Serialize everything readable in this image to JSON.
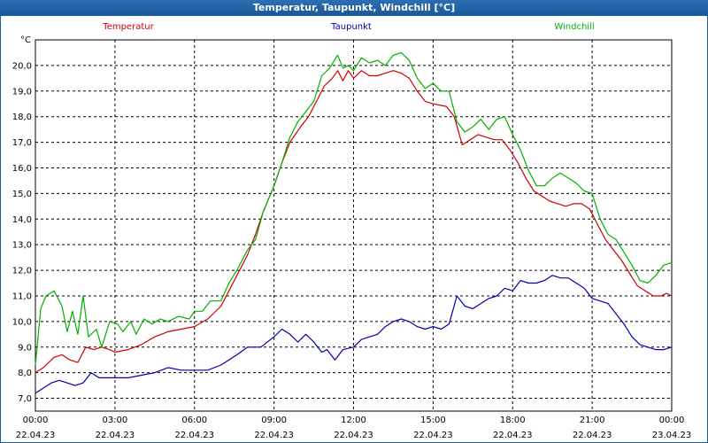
{
  "window": {
    "title": "Temperatur, Taupunkt, Windchill [°C]"
  },
  "chart_data": {
    "type": "line",
    "title": "Temperatur, Taupunkt, Windchill [°C]",
    "unit": "°C",
    "ylim": [
      6.5,
      21.0
    ],
    "yticks": [
      "7,0",
      "8,0",
      "9,0",
      "10,0",
      "11,0",
      "12,0",
      "13,0",
      "14,0",
      "15,0",
      "16,0",
      "17,0",
      "18,0",
      "19,0",
      "20,0"
    ],
    "xlim": [
      0,
      24
    ],
    "xticks": [
      {
        "time": "00:00",
        "date": "22.04.23"
      },
      {
        "time": "03:00",
        "date": "22.04.23"
      },
      {
        "time": "06:00",
        "date": "22.04.23"
      },
      {
        "time": "09:00",
        "date": "22.04.23"
      },
      {
        "time": "12:00",
        "date": "22.04.23"
      },
      {
        "time": "15:00",
        "date": "22.04.23"
      },
      {
        "time": "18:00",
        "date": "22.04.23"
      },
      {
        "time": "21:00",
        "date": "22.04.23"
      },
      {
        "time": "00:00",
        "date": "23.04.23"
      }
    ],
    "grid": true,
    "series": [
      {
        "name": "Temperatur",
        "color": "#d00000",
        "points": [
          [
            0,
            8.0
          ],
          [
            0.3,
            8.2
          ],
          [
            0.7,
            8.6
          ],
          [
            1.0,
            8.7
          ],
          [
            1.3,
            8.5
          ],
          [
            1.6,
            8.4
          ],
          [
            1.9,
            9.0
          ],
          [
            2.2,
            8.9
          ],
          [
            2.5,
            9.0
          ],
          [
            2.8,
            8.9
          ],
          [
            3.0,
            8.8
          ],
          [
            3.5,
            8.9
          ],
          [
            4.0,
            9.1
          ],
          [
            4.5,
            9.4
          ],
          [
            5.0,
            9.6
          ],
          [
            5.5,
            9.7
          ],
          [
            6.0,
            9.8
          ],
          [
            6.5,
            10.1
          ],
          [
            7.0,
            10.6
          ],
          [
            7.3,
            11.2
          ],
          [
            7.6,
            11.8
          ],
          [
            8.0,
            12.6
          ],
          [
            8.3,
            13.4
          ],
          [
            8.6,
            14.3
          ],
          [
            9.0,
            15.3
          ],
          [
            9.3,
            16.2
          ],
          [
            9.6,
            17.0
          ],
          [
            10.0,
            17.6
          ],
          [
            10.3,
            18.0
          ],
          [
            10.6,
            18.6
          ],
          [
            10.9,
            19.2
          ],
          [
            11.2,
            19.5
          ],
          [
            11.4,
            19.8
          ],
          [
            11.6,
            19.4
          ],
          [
            11.8,
            19.8
          ],
          [
            12.0,
            19.5
          ],
          [
            12.3,
            19.8
          ],
          [
            12.6,
            19.6
          ],
          [
            12.9,
            19.6
          ],
          [
            13.2,
            19.7
          ],
          [
            13.5,
            19.8
          ],
          [
            13.8,
            19.7
          ],
          [
            14.1,
            19.5
          ],
          [
            14.4,
            19.0
          ],
          [
            14.7,
            18.6
          ],
          [
            15.0,
            18.5
          ],
          [
            15.5,
            18.4
          ],
          [
            15.8,
            18.0
          ],
          [
            16.1,
            16.9
          ],
          [
            16.4,
            17.1
          ],
          [
            16.7,
            17.3
          ],
          [
            17.0,
            17.2
          ],
          [
            17.3,
            17.1
          ],
          [
            17.6,
            17.1
          ],
          [
            17.9,
            16.7
          ],
          [
            18.2,
            16.2
          ],
          [
            18.5,
            15.6
          ],
          [
            18.8,
            15.1
          ],
          [
            19.1,
            14.9
          ],
          [
            19.4,
            14.7
          ],
          [
            19.7,
            14.6
          ],
          [
            20.0,
            14.5
          ],
          [
            20.3,
            14.6
          ],
          [
            20.6,
            14.6
          ],
          [
            20.9,
            14.4
          ],
          [
            21.2,
            13.8
          ],
          [
            21.5,
            13.2
          ],
          [
            21.8,
            12.8
          ],
          [
            22.1,
            12.4
          ],
          [
            22.4,
            11.9
          ],
          [
            22.7,
            11.4
          ],
          [
            23.0,
            11.2
          ],
          [
            23.3,
            11.0
          ],
          [
            23.6,
            11.0
          ],
          [
            23.8,
            11.1
          ],
          [
            24.0,
            11.0
          ]
        ]
      },
      {
        "name": "Taupunkt",
        "color": "#0000b0",
        "points": [
          [
            0,
            7.2
          ],
          [
            0.3,
            7.4
          ],
          [
            0.6,
            7.6
          ],
          [
            0.9,
            7.7
          ],
          [
            1.2,
            7.6
          ],
          [
            1.5,
            7.5
          ],
          [
            1.8,
            7.6
          ],
          [
            2.1,
            8.0
          ],
          [
            2.4,
            7.8
          ],
          [
            2.7,
            7.8
          ],
          [
            3.0,
            7.8
          ],
          [
            3.5,
            7.8
          ],
          [
            4.0,
            7.9
          ],
          [
            4.5,
            8.0
          ],
          [
            5.0,
            8.2
          ],
          [
            5.5,
            8.1
          ],
          [
            6.0,
            8.1
          ],
          [
            6.5,
            8.1
          ],
          [
            7.0,
            8.3
          ],
          [
            7.3,
            8.5
          ],
          [
            7.6,
            8.7
          ],
          [
            8.0,
            9.0
          ],
          [
            8.5,
            9.0
          ],
          [
            9.0,
            9.4
          ],
          [
            9.3,
            9.7
          ],
          [
            9.6,
            9.5
          ],
          [
            9.9,
            9.2
          ],
          [
            10.2,
            9.5
          ],
          [
            10.5,
            9.2
          ],
          [
            10.8,
            8.8
          ],
          [
            11.0,
            8.9
          ],
          [
            11.3,
            8.5
          ],
          [
            11.6,
            8.9
          ],
          [
            12.0,
            9.0
          ],
          [
            12.3,
            9.3
          ],
          [
            12.6,
            9.4
          ],
          [
            12.9,
            9.5
          ],
          [
            13.2,
            9.8
          ],
          [
            13.5,
            10.0
          ],
          [
            13.8,
            10.1
          ],
          [
            14.1,
            10.0
          ],
          [
            14.4,
            9.8
          ],
          [
            14.7,
            9.7
          ],
          [
            15.0,
            9.8
          ],
          [
            15.3,
            9.7
          ],
          [
            15.6,
            9.9
          ],
          [
            15.9,
            11.0
          ],
          [
            16.2,
            10.6
          ],
          [
            16.5,
            10.5
          ],
          [
            16.8,
            10.7
          ],
          [
            17.1,
            10.9
          ],
          [
            17.4,
            11.0
          ],
          [
            17.7,
            11.3
          ],
          [
            18.0,
            11.2
          ],
          [
            18.3,
            11.6
          ],
          [
            18.6,
            11.5
          ],
          [
            18.9,
            11.5
          ],
          [
            19.2,
            11.6
          ],
          [
            19.5,
            11.8
          ],
          [
            19.8,
            11.7
          ],
          [
            20.1,
            11.7
          ],
          [
            20.4,
            11.5
          ],
          [
            20.7,
            11.3
          ],
          [
            21.0,
            10.9
          ],
          [
            21.3,
            10.8
          ],
          [
            21.6,
            10.7
          ],
          [
            21.9,
            10.3
          ],
          [
            22.2,
            9.9
          ],
          [
            22.5,
            9.4
          ],
          [
            22.8,
            9.1
          ],
          [
            23.1,
            9.0
          ],
          [
            23.4,
            8.9
          ],
          [
            23.7,
            8.9
          ],
          [
            24.0,
            9.0
          ]
        ]
      },
      {
        "name": "Windchill",
        "color": "#00b000",
        "points": [
          [
            0,
            8.3
          ],
          [
            0.2,
            10.5
          ],
          [
            0.4,
            11.0
          ],
          [
            0.7,
            11.2
          ],
          [
            1.0,
            10.6
          ],
          [
            1.2,
            9.6
          ],
          [
            1.4,
            10.4
          ],
          [
            1.6,
            9.5
          ],
          [
            1.8,
            11.0
          ],
          [
            2.0,
            9.4
          ],
          [
            2.3,
            9.7
          ],
          [
            2.5,
            9.0
          ],
          [
            2.8,
            10.0
          ],
          [
            3.1,
            9.9
          ],
          [
            3.3,
            9.6
          ],
          [
            3.6,
            10.0
          ],
          [
            3.8,
            9.5
          ],
          [
            4.1,
            10.1
          ],
          [
            4.4,
            9.9
          ],
          [
            4.7,
            10.1
          ],
          [
            5.0,
            10.0
          ],
          [
            5.4,
            10.2
          ],
          [
            5.8,
            10.1
          ],
          [
            6.0,
            10.4
          ],
          [
            6.3,
            10.4
          ],
          [
            6.6,
            10.8
          ],
          [
            7.0,
            10.8
          ],
          [
            7.3,
            11.5
          ],
          [
            7.6,
            12.0
          ],
          [
            8.0,
            12.8
          ],
          [
            8.3,
            13.2
          ],
          [
            8.6,
            14.3
          ],
          [
            9.0,
            15.3
          ],
          [
            9.3,
            16.2
          ],
          [
            9.6,
            17.2
          ],
          [
            9.9,
            17.8
          ],
          [
            10.2,
            18.2
          ],
          [
            10.5,
            18.6
          ],
          [
            10.8,
            19.6
          ],
          [
            11.1,
            19.9
          ],
          [
            11.4,
            20.4
          ],
          [
            11.6,
            19.9
          ],
          [
            11.8,
            20.0
          ],
          [
            12.0,
            19.8
          ],
          [
            12.3,
            20.3
          ],
          [
            12.6,
            20.1
          ],
          [
            12.9,
            20.2
          ],
          [
            13.2,
            20.0
          ],
          [
            13.5,
            20.4
          ],
          [
            13.8,
            20.5
          ],
          [
            14.1,
            20.2
          ],
          [
            14.4,
            19.5
          ],
          [
            14.7,
            19.1
          ],
          [
            15.0,
            19.3
          ],
          [
            15.3,
            19.0
          ],
          [
            15.6,
            19.0
          ],
          [
            15.9,
            17.8
          ],
          [
            16.2,
            17.4
          ],
          [
            16.5,
            17.6
          ],
          [
            16.8,
            17.9
          ],
          [
            17.1,
            17.5
          ],
          [
            17.4,
            17.9
          ],
          [
            17.7,
            18.0
          ],
          [
            18.0,
            17.3
          ],
          [
            18.3,
            16.7
          ],
          [
            18.6,
            15.9
          ],
          [
            18.9,
            15.3
          ],
          [
            19.2,
            15.3
          ],
          [
            19.5,
            15.6
          ],
          [
            19.8,
            15.8
          ],
          [
            20.1,
            15.6
          ],
          [
            20.4,
            15.4
          ],
          [
            20.7,
            15.1
          ],
          [
            21.0,
            15.0
          ],
          [
            21.3,
            14.0
          ],
          [
            21.6,
            13.4
          ],
          [
            21.9,
            13.2
          ],
          [
            22.2,
            12.7
          ],
          [
            22.5,
            12.2
          ],
          [
            22.8,
            11.6
          ],
          [
            23.1,
            11.5
          ],
          [
            23.4,
            11.8
          ],
          [
            23.7,
            12.2
          ],
          [
            24.0,
            12.3
          ]
        ]
      }
    ]
  }
}
